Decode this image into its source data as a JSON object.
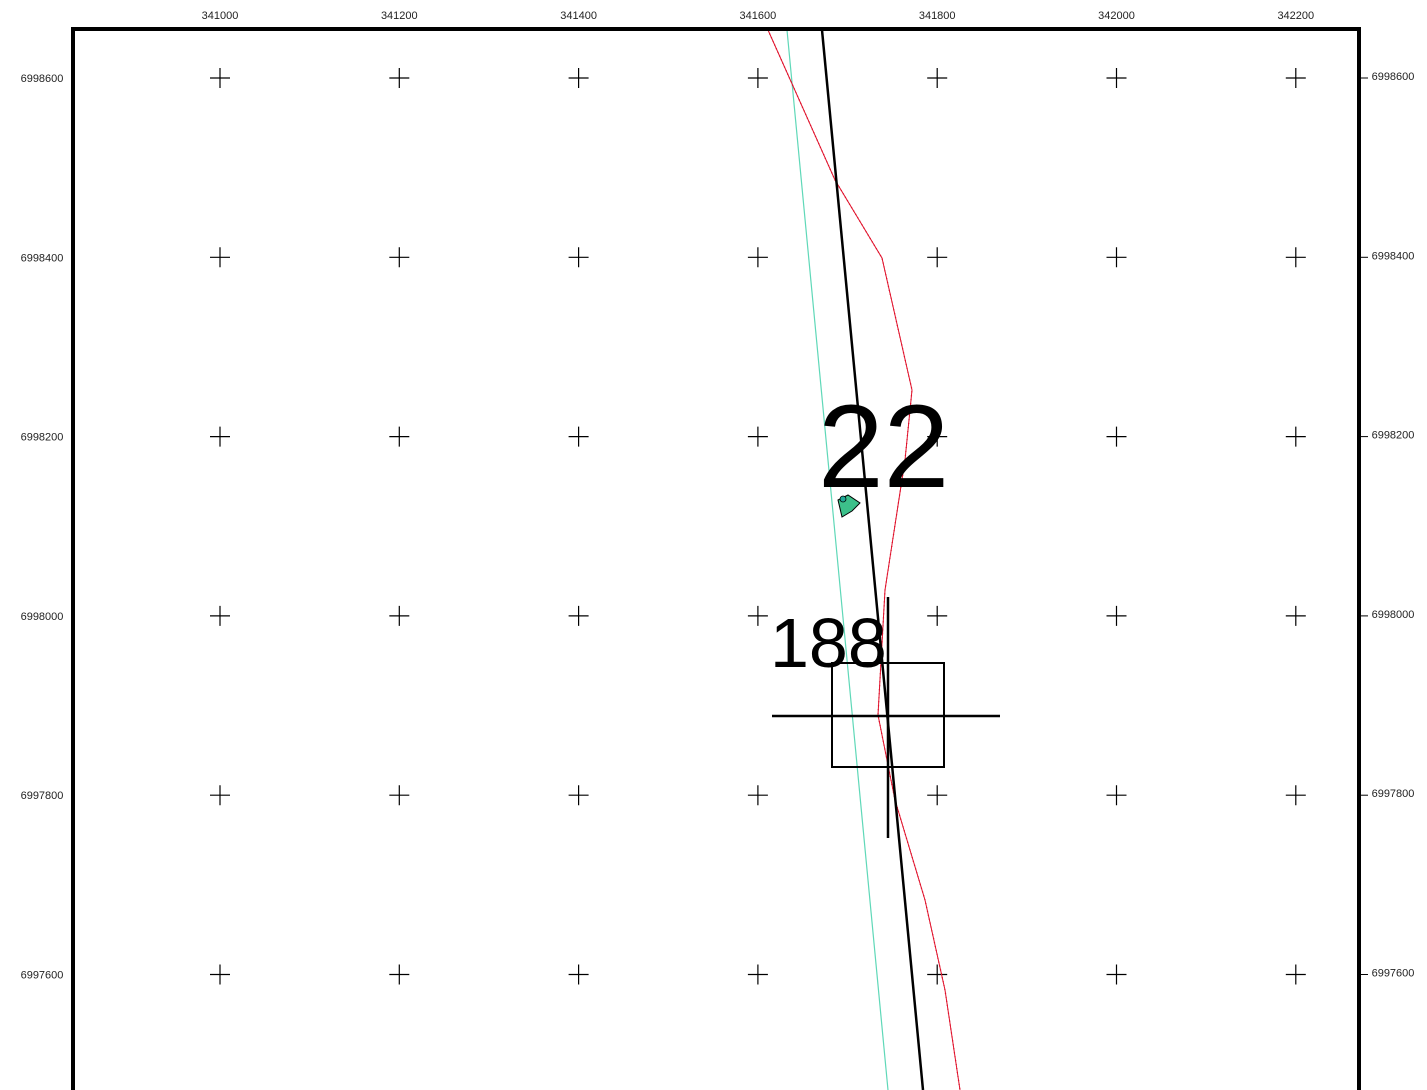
{
  "map": {
    "x_labels": [
      "341000",
      "341200",
      "341400",
      "341600",
      "341800",
      "342000",
      "342200"
    ],
    "y_labels": [
      "6998600",
      "6998400",
      "6998200",
      "6998000",
      "6997800",
      "6997600"
    ],
    "labels": [
      "22",
      "188"
    ]
  }
}
